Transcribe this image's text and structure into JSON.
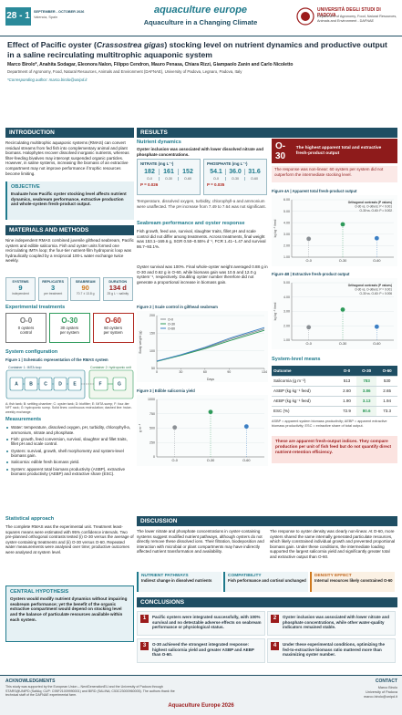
{
  "header": {
    "edition": "28 - 1",
    "dates": "SEPTEMBER - OCTOBER 2026",
    "location": "Valencia, Spain",
    "brand": "aquaculture europe",
    "tagline": "Aquaculture in a Changing Climate",
    "university": "UNIVERSITÀ DEGLI STUDI DI PADOVA",
    "department": "Department of Agronomy, Food, Natural Resources, Animals and Environment - DAFNAE"
  },
  "title": {
    "before": "Effect of Pacific oyster (",
    "species": "Crassostrea gigas",
    "after": ") stocking level on nutrient dynamics and productive output in a saline recirculating multitrophic aquaponic system",
    "authors": "Marco Birolo*, Anahita Sodagar, Eleonora Nalon, Filippo Cendron, Mauro Penasa, Chiara Rizzi, Giampaolo Zanin and Carlo Nicoletto",
    "affiliation": "Department of Agronomy, Food, Natural Resources, Animals and Environment (DAFNAE), University of Padova, Legnaro, Padova, Italy",
    "corresponding": "*Corresponding author: marco.birolo@unipd.it"
  },
  "introduction": {
    "heading": "INTRODUCTION",
    "text": "Recirculating multitrophic aquaponic systems (RMAS) can convert residual streams from fed fish into complementary animal and plant biomass. Halophytes recover dissolved inorganic nutrients, whereas filter-feeding bivalves may intercept suspended organic particles. However, in saline systems, increasing the biomass of an extractive compartment may not improve performance if trophic resources become limiting."
  },
  "objective": {
    "heading": "OBJECTIVE",
    "text": "Evaluate how Pacific oyster stocking level affects nutrient dynamics, seabream performance, extractive production and whole-system fresh-product output."
  },
  "methods": {
    "heading": "MATERIALS AND METHODS",
    "text": "Nine independent RMAS combined juvenile gilthead seabream, Pacific oysters and edible salicornia. Fish and oyster units formed one recirculating IMTA loop; the four-tier nutrient-film hydroponic loop was hydraulically coupled by a reciprocal 100-L water exchange twice weekly.",
    "stats": [
      {
        "label": "SYSTEMS",
        "value": "9",
        "note": "independent"
      },
      {
        "label": "REPLICATES",
        "value": "3",
        "note": "per treatment"
      },
      {
        "label": "SEABREAM",
        "value": "90",
        "note": "70.7 ± 13.8 g"
      },
      {
        "label": "DURATION",
        "value": "134 d",
        "note": "25 g L⁻¹ salinity"
      }
    ],
    "treatments_heading": "Experimental treatments",
    "treatments": [
      {
        "code": "O-0",
        "line1": "0 oysters",
        "line2": "control"
      },
      {
        "code": "O-30",
        "line1": "30 oysters",
        "line2": "per system"
      },
      {
        "code": "O-60",
        "line1": "60 oysters",
        "line2": "per system"
      }
    ],
    "configuration_heading": "System configuration",
    "figure1": {
      "caption": "Figure 1 | Schematic representation of the RMAS system",
      "containers": [
        "Container 1: IMTA loop",
        "Container 2: hydroponic unit"
      ],
      "units": [
        "A",
        "B",
        "C",
        "D",
        "E",
        "F",
        "G"
      ],
      "legend": "A: fish tank; B: settling chamber; C: oyster tank; D: biofilter; E: IMTA sump; F: four-tier NFT rack; G: hydroponic sump. Solid lines: continuous recirculation; dashed line: twice-weekly exchange."
    },
    "measurements_heading": "Measurements",
    "measurements": [
      "Water: temperature, dissolved oxygen, pH, turbidity, chlorophyll-a, ammonium, nitrate and phosphate.",
      "Fish: growth, feed conversion, survival, slaughter and fillet traits, fillet pH and scale control.",
      "Oysters: survival, growth, shell morphometry and system-level biomass gain.",
      "Salicornia: edible fresh biomass yield.",
      "System: apparent total biomass productivity (ASBP), extractive biomass productivity (AEBP) and extractive share (ESC)."
    ],
    "statistics_heading": "Statistical approach",
    "statistics": "The complete RMAS was the experimental unit. Treatment least-squares means were estimated with 95% confidence intervals. Two pre-planned orthogonal contrasts tested (i) O-30 versus the average of oyster-containing treatments and (ii) O-30 versus O-60. Repeated water measurements were analysed over time; productive outcomes were analysed at system level.",
    "hypothesis": {
      "heading": "CENTRAL HYPOTHESIS",
      "text": "Oysters would modify nutrient dynamics without impairing seabream performance; yet the benefit of the organic extractive compartment would depend on stocking level and the balance of particulate resources available within each system."
    }
  },
  "results": {
    "heading": "RESULTS",
    "nutrients": {
      "heading": "Nutrient dynamics",
      "lead": "Oyster inclusion was associated with lower dissolved nitrate and phosphate concentrations.",
      "panels": [
        {
          "label": "NITRATE (mg L⁻¹)",
          "values": [
            "182",
            "161",
            "152"
          ],
          "groups": [
            "O-0",
            "O-30",
            "O-60"
          ],
          "p": "P = 0.026"
        },
        {
          "label": "PHOSPHATE (mg L⁻¹)",
          "values": [
            "54.1",
            "36.0",
            "31.6"
          ],
          "groups": [
            "O-0",
            "O-30",
            "O-60"
          ],
          "p": "P = 0.035"
        }
      ],
      "text": "Temperature, dissolved oxygen, turbidity, chlorophyll-a and ammonium were unaffected. The pH increase from 7.49 to 7.64 was not significant."
    },
    "performance": {
      "heading": "Seabream performance and oyster response",
      "text1": "Fish growth, feed use, survival, slaughter traits, fillet pH and scale control did not differ among treatments. Across treatments, final weight was 153.1–169.6 g, SGR 0.50–0.55% d⁻¹, FCR 1.41–1.47 and survival 86.7–93.1%.",
      "text2": "Oyster survival was 100%. Final whole-oyster weight averaged 0.88 g in O-30 and 0.62 g in O-60, while biomass gain was 10.5 and 12.0 g system⁻¹, respectively. Doubling oyster number therefore did not generate a proportional increase in biomass gain."
    },
    "figure2": {
      "type": "line",
      "caption": "Figure 2 | Scale control in gilthead seabream",
      "xlabel": "Days",
      "ylabel": "Body weight (g)",
      "x": [
        0,
        30,
        60,
        90,
        134
      ],
      "xlim": [
        0,
        134
      ],
      "xticks": [
        0,
        30,
        60,
        90,
        134
      ],
      "ylim": [
        50,
        200
      ],
      "yticks": [
        50,
        100,
        150,
        200
      ],
      "series": [
        {
          "name": "O-0",
          "color": "#8a8f94",
          "values": [
            71,
            88,
            108,
            132,
            162
          ]
        },
        {
          "name": "O-30",
          "color": "#2e9a5a",
          "values": [
            70,
            87,
            106,
            128,
            158
          ]
        },
        {
          "name": "O-60",
          "color": "#3b7fc4",
          "values": [
            71,
            89,
            110,
            135,
            166
          ]
        }
      ]
    },
    "figure3": {
      "type": "dot",
      "caption": "Figure 3 | Edible salicornia yield",
      "ylabel": "g m⁻²",
      "categories": [
        "O-0",
        "O-30",
        "O-60"
      ],
      "values": [
        513,
        783,
        530
      ],
      "colors": [
        "#8a8f94",
        "#2e9a5a",
        "#3b7fc4"
      ],
      "ylim": [
        0,
        1000
      ],
      "yticks": [
        0,
        250,
        500,
        750,
        1000
      ]
    },
    "highlight": {
      "code": "O-30",
      "text": "The highest apparent total and extractive fresh-product output",
      "note": "The response was non-linear: 60 oysters per system did not outperform the intermediate stocking level."
    },
    "figure4a": {
      "type": "dot",
      "caption": "Figure 4A | Apparent total fresh-product output",
      "ylabel": "kg kg⁻¹ feed",
      "categories": [
        "O-0",
        "O-30",
        "O-60"
      ],
      "values": [
        2.6,
        3.86,
        2.65
      ],
      "colors": [
        "#8a8f94",
        "#2e9a5a",
        "#3b7fc4"
      ],
      "ylim": [
        1,
        6
      ],
      "yticks": [
        {
          "value": 1,
          "label": "1.00"
        },
        {
          "value": 2,
          "label": "2.00"
        },
        {
          "value": 3,
          "label": "3.00"
        },
        {
          "value": 4,
          "label": "4.00"
        },
        {
          "value": 5,
          "label": "5.00"
        },
        {
          "value": 6,
          "label": "6.00"
        }
      ],
      "notes": [
        "Orthogonal contrasts (P values)",
        "O-30 vs. O-others: P < 0.001",
        "O-30 vs. O-60: P = 0.002"
      ]
    },
    "figure4b": {
      "type": "dot",
      "caption": "Figure 4B | Extractive fresh-product output",
      "ylabel": "kg kg⁻¹ feed",
      "categories": [
        "O-0",
        "O-30",
        "O-60"
      ],
      "values": [
        1.9,
        3.13,
        1.94
      ],
      "colors": [
        "#8a8f94",
        "#2e9a5a",
        "#3b7fc4"
      ],
      "ylim": [
        1,
        5
      ],
      "yticks": [
        {
          "value": 1,
          "label": "1.00"
        },
        {
          "value": 2,
          "label": "2.00"
        },
        {
          "value": 3,
          "label": "3.00"
        },
        {
          "value": 4,
          "label": "4.00"
        },
        {
          "value": 5,
          "label": "5.00"
        }
      ],
      "notes": [
        "Orthogonal contrasts (P values)",
        "O-30 vs. O-others: P = 0.001",
        "O-30 vs. O-60: P = 0.006"
      ]
    },
    "table": {
      "heading": "System-level means",
      "columns": [
        "Outcome",
        "O-0",
        "O-30",
        "O-60"
      ],
      "rows": [
        [
          "Salicornia (g m⁻²)",
          "513",
          "783",
          "530"
        ],
        [
          "ASBP (kg kg⁻¹ feed)",
          "2.60",
          "3.86",
          "2.65"
        ],
        [
          "AEBP (kg kg⁻¹ feed)",
          "1.90",
          "3.13",
          "1.94"
        ],
        [
          "ESC (%)",
          "72.9",
          "80.6",
          "73.3"
        ]
      ],
      "note": "ASBP = apparent system biomass productivity; AEBP = apparent extractive biomass productivity; ESC = extractive share of total output."
    },
    "caution": "These are apparent fresh-output indices. They compare production per unit of fish feed but do not quantify direct nutrient-retention efficiency."
  },
  "discussion": {
    "heading": "DISCUSSION",
    "text1": "The lower nitrate and phosphate concentrations in oyster-containing systems suggest modified nutrient pathways, although oysters do not directly remove these dissolved ions. Their filtration, biodeposition and interaction with microbial or plant compartments may have indirectly affected nutrient transformation and availability.",
    "text2": "The response to oyster density was clearly non-linear. At O-60, more oysters shared the same internally generated particulate resources, which likely constrained individual growth and prevented proportional biomass gain. Under these conditions, the intermediate loading supported the largest salicornia yield and significantly greater total and extractive output than O-60.",
    "boxes": [
      {
        "title": "NUTRIENT PATHWAYS",
        "text": "Indirect change in dissolved nutrients"
      },
      {
        "title": "COMPATIBILITY",
        "text": "Fish performance and cortisol unchanged"
      },
      {
        "title": "DENSITY EFFECT",
        "text": "Internal resources likely constrained O-60"
      }
    ]
  },
  "conclusions": {
    "heading": "CONCLUSIONS",
    "items": [
      {
        "number": 1,
        "text": "Pacific oysters were integrated successfully, with 100% survival and no detectable adverse effects on seabream performance or physiological status."
      },
      {
        "number": 2,
        "text": "Oyster inclusion was associated with lower nitrate and phosphate concentrations, while other water-quality indicators remained stable."
      },
      {
        "number": 3,
        "text": "O-30 achieved the strongest integrated response: highest salicornia yield and greater ASBP and AEBP than O-60."
      },
      {
        "number": 4,
        "text": "Under these experimental conditions, optimizing the fed-to-extractive biomass ratio mattered more than maximizing oyster number."
      }
    ]
  },
  "footer": {
    "ack_heading": "ACKNOWLEDGMENTS",
    "ack_text": "This study was supported by the European Union – NextGenerationEU and the University of Padova through STARS@UNIPD (SaltAq; CUP: C95F21009990001) and BIRD (SALINA; C53C23000960005). The authors thank the technical staff of the DAFNAE experimental farm.",
    "event": "Aquaculture Europe 2026",
    "contact_heading": "CONTACT",
    "contact": [
      "Marco Birolo",
      "University of Padova",
      "marco.birolo@unipd.it"
    ]
  }
}
